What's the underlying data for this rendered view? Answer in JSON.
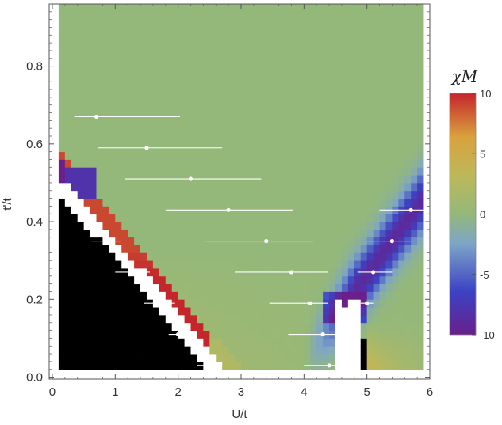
{
  "chart_data": {
    "type": "heatmap",
    "title": "",
    "xlabel": "U/t",
    "ylabel": "t'/t",
    "xlim": [
      -0.05,
      6.0
    ],
    "ylim": [
      -0.005,
      0.96
    ],
    "x_ticks": [
      0,
      1,
      2,
      3,
      4,
      5,
      6
    ],
    "y_ticks": [
      0.0,
      0.2,
      0.4,
      0.6,
      0.8
    ],
    "x_tick_labels": [
      "0",
      "1",
      "2",
      "3",
      "4",
      "5",
      "6"
    ],
    "y_tick_labels": [
      "0.0",
      "0.2",
      "0.4",
      "0.6",
      "0.8"
    ],
    "colorbar": {
      "label": "χM",
      "range": [
        -10,
        10
      ],
      "ticks": [
        10,
        5,
        0,
        -5,
        -10
      ],
      "tick_labels": [
        "10",
        "5",
        "0",
        "-5",
        "-10"
      ],
      "colors": [
        "#6a1f8a",
        "#3b43c4",
        "#7ea6c6",
        "#94b87a",
        "#bdb85a",
        "#d9a13e",
        "#c4262b"
      ]
    },
    "grid_domain": {
      "x": [
        0.1,
        5.9
      ],
      "y": [
        0.02,
        0.96
      ]
    },
    "series": [
      {
        "points": [
          {
            "x": 0.7,
            "y": 0.67,
            "xerr": [
              0.35,
              2.03
            ]
          },
          {
            "x": 1.5,
            "y": 0.59,
            "xerr": [
              0.73,
              2.7
            ]
          },
          {
            "x": 2.2,
            "y": 0.51,
            "xerr": [
              1.15,
              3.32
            ]
          },
          {
            "x": 2.8,
            "y": 0.43,
            "xerr": [
              1.8,
              3.82
            ]
          },
          {
            "x": 3.4,
            "y": 0.35,
            "xerr": [
              2.42,
              4.15
            ]
          },
          {
            "x": 3.8,
            "y": 0.27,
            "xerr": [
              2.9,
              4.38
            ]
          },
          {
            "x": 4.1,
            "y": 0.19,
            "xerr": [
              3.45,
              4.38
            ]
          },
          {
            "x": 4.3,
            "y": 0.11,
            "xerr": [
              3.75,
              4.6
            ]
          },
          {
            "x": 4.4,
            "y": 0.03,
            "xerr": [
              4.0,
              4.72
            ]
          },
          {
            "x": 5.7,
            "y": 0.43,
            "xerr": [
              5.2,
              6.0
            ]
          },
          {
            "x": 5.4,
            "y": 0.35,
            "xerr": [
              5.0,
              5.7
            ]
          },
          {
            "x": 5.1,
            "y": 0.27,
            "xerr": [
              4.85,
              5.4
            ]
          },
          {
            "x": 5.0,
            "y": 0.19,
            "xerr": [
              4.9,
              5.1
            ]
          },
          {
            "x": 0.45,
            "y": 0.43,
            "xerr": [
              0.3,
              0.58
            ]
          },
          {
            "x": 0.85,
            "y": 0.35,
            "xerr": [
              0.62,
              1.08
            ]
          },
          {
            "x": 1.3,
            "y": 0.27,
            "xerr": [
              1.0,
              1.55
            ]
          },
          {
            "x": 1.7,
            "y": 0.19,
            "xerr": [
              1.45,
              1.95
            ]
          },
          {
            "x": 2.0,
            "y": 0.11,
            "xerr": [
              1.85,
              2.2
            ]
          },
          {
            "x": 2.45,
            "y": 0.03,
            "xerr": [
              2.3,
              2.6
            ]
          }
        ]
      }
    ]
  }
}
